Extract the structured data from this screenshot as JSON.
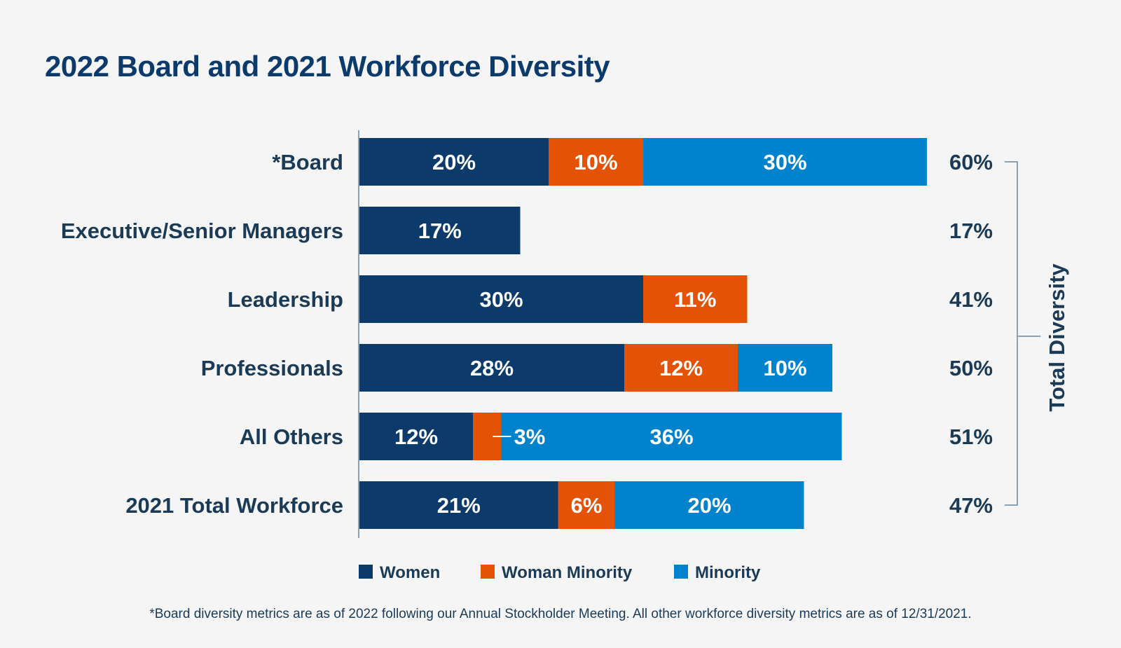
{
  "colors": {
    "women": "#0b3a6b",
    "woman_minority": "#e35205",
    "minority": "#0083cc",
    "axis": "#8aa0b4",
    "text": "#1b3a55",
    "background": "#f5f5f5"
  },
  "chart_data": {
    "type": "bar",
    "orientation": "horizontal",
    "stacked": true,
    "title": "2022 Board and 2021 Workforce Diversity",
    "categories": [
      "*Board",
      "Executive/Senior Managers",
      "Leadership",
      "Professionals",
      "All Others",
      "2021 Total Workforce"
    ],
    "series": [
      {
        "name": "Women",
        "values": [
          20,
          17,
          30,
          28,
          12,
          21
        ],
        "labels": [
          "20%",
          "17%",
          "30%",
          "28%",
          "12%",
          "21%"
        ]
      },
      {
        "name": "Woman Minority",
        "values": [
          10,
          0,
          11,
          12,
          3,
          6
        ],
        "labels": [
          "10%",
          "",
          "11%",
          "12%",
          "3%",
          "6%"
        ]
      },
      {
        "name": "Minority",
        "values": [
          30,
          0,
          0,
          10,
          36,
          20
        ],
        "labels": [
          "30%",
          "",
          "",
          "10%",
          "36%",
          "20%"
        ]
      }
    ],
    "totals": [
      60,
      17,
      41,
      50,
      51,
      47
    ],
    "total_labels": [
      "60%",
      "17%",
      "41%",
      "50%",
      "51%",
      "47%"
    ],
    "bracket_label": "Total Diversity",
    "xlim": [
      0,
      60
    ],
    "grid": false,
    "legend_position": "bottom",
    "footnote": "*Board diversity metrics are as of 2022 following our Annual Stockholder Meeting. All other workforce diversity metrics are as of 12/31/2021."
  }
}
